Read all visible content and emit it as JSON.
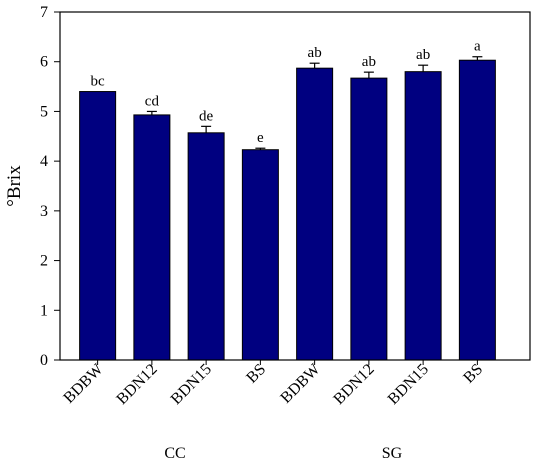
{
  "chart_data": {
    "type": "bar",
    "ylabel": "°Brix",
    "xlabel": "",
    "ylim": [
      0,
      7
    ],
    "yticks": [
      0,
      1,
      2,
      3,
      4,
      5,
      6,
      7
    ],
    "grid": false,
    "categories": [
      "BDBW",
      "BDN12",
      "BDN15",
      "BS",
      "BDBW",
      "BDN12",
      "BDN15",
      "BS"
    ],
    "groups": [
      {
        "label": "CC",
        "start": 0,
        "end": 3
      },
      {
        "label": "SG",
        "start": 4,
        "end": 7
      }
    ],
    "values": [
      5.4,
      4.93,
      4.57,
      4.23,
      5.87,
      5.67,
      5.8,
      6.03
    ],
    "errors": [
      0.0,
      0.07,
      0.13,
      0.03,
      0.1,
      0.12,
      0.13,
      0.07
    ],
    "significance": [
      "bc",
      "cd",
      "de",
      "e",
      "ab",
      "ab",
      "ab",
      "a"
    ],
    "bar_color": "#000080"
  }
}
